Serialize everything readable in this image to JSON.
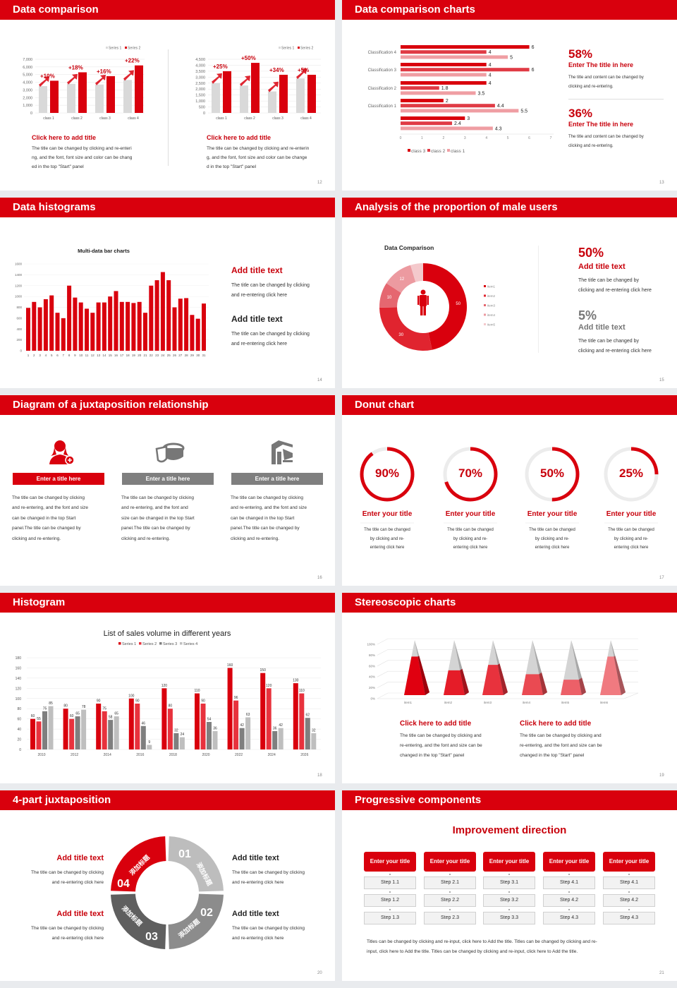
{
  "colors": {
    "brand": "#d9000d",
    "dark_red": "#c8000b",
    "grey": "#8c8c8c",
    "background": "#e9ebee"
  },
  "slides": {
    "s12": {
      "title": "Data comparison",
      "page": "12",
      "blocks": [
        {
          "heading": "Click here to add title",
          "lines": [
            "The title can be changed by clicking and re-enteri",
            "ng, and the font, font size and color can be chang",
            "ed in the top \"Start\" panel"
          ]
        },
        {
          "heading": "Click here to add title",
          "lines": [
            "The title can be changed by clicking and re-enterin",
            "g, and the font, font size and color can be change",
            "d in the top \"Start\" panel"
          ]
        }
      ]
    },
    "s13": {
      "title": "Data comparison charts",
      "page": "13",
      "stats": [
        {
          "value": "58%",
          "heading": "Enter The title in here",
          "lines": [
            "The title and content can be changed by",
            "clicking and re-entering."
          ]
        },
        {
          "value": "36%",
          "heading": "Enter The title in here",
          "lines": [
            "The title and content can be changed by",
            "clicking and re-entering."
          ]
        }
      ]
    },
    "s14": {
      "title": "Data histograms",
      "page": "14",
      "blocks": [
        {
          "heading": "Add title text",
          "lines": [
            "The title can be changed by clicking",
            "and re-entering click here"
          ]
        },
        {
          "heading": "Add title text",
          "lines": [
            "The title can be changed by clicking",
            "and re-entering click here"
          ]
        }
      ]
    },
    "s15": {
      "title": "Analysis of the proportion of male users",
      "page": "15",
      "stats": [
        {
          "value": "50%",
          "heading": "Add title text",
          "lines": [
            "The title can be changed by",
            "clicking and re-entering click here"
          ]
        },
        {
          "value": "5%",
          "heading": "Add title text",
          "lines": [
            "The title can be changed by",
            "clicking and re-entering click here"
          ]
        }
      ]
    },
    "s16": {
      "title": "Diagram of a juxtaposition relationship",
      "page": "16",
      "items": [
        {
          "icon": "female-user-add-icon",
          "label": "Enter a title here",
          "lines": [
            "The title can be changed by clicking",
            "and re-entering, and the font and size",
            "can be changed in the top Start",
            "panel.The title can be changed by",
            "clicking and re-entering."
          ]
        },
        {
          "icon": "pie-chart-3d-icon",
          "label": "Enter a title here",
          "lines": [
            "The title can be changed by clicking",
            "and re-entering, and the font and",
            "size can be changed in the top Start",
            "panel.The title can be changed by",
            "clicking and re-entering."
          ]
        },
        {
          "icon": "building-chart-icon",
          "label": "Enter a title here",
          "lines": [
            "The title can be changed by clicking",
            "and re-entering, and the font and size",
            "can be changed in the top Start",
            "panel.The title can be changed by",
            "clicking and re-entering."
          ]
        }
      ]
    },
    "s17": {
      "title": "Donut chart",
      "page": "17",
      "items": [
        {
          "percent": 90,
          "label": "90%",
          "heading": "Enter your title",
          "lines": [
            "The title can be changed",
            "by clicking and re-",
            "entering click here"
          ]
        },
        {
          "percent": 70,
          "label": "70%",
          "heading": "Enter your title",
          "lines": [
            "The title can be changed",
            "by clicking and re-",
            "entering click here"
          ]
        },
        {
          "percent": 50,
          "label": "50%",
          "heading": "Enter your title",
          "lines": [
            "The title can be changed",
            "by clicking and re-",
            "entering click here"
          ]
        },
        {
          "percent": 25,
          "label": "25%",
          "heading": "Enter your title",
          "lines": [
            "The title can be changed",
            "by clicking and re-",
            "entering click here"
          ]
        }
      ]
    },
    "s18": {
      "title": "Histogram",
      "page": "18"
    },
    "s19": {
      "title": "Stereoscopic charts",
      "page": "19",
      "blocks": [
        {
          "heading": "Click here to add title",
          "lines": [
            "The title can be changed by clicking and",
            "re-entering, and the font and size can be",
            "changed in the top \"Start\" panel"
          ]
        },
        {
          "heading": "Click here to add title",
          "lines": [
            "The title can be changed by clicking and",
            "re-entering, and the font and size can be",
            "changed in the top \"Start\" panel"
          ]
        }
      ]
    },
    "s20": {
      "title": "4-part juxtaposition",
      "page": "20",
      "segments": [
        {
          "num": "01",
          "label": "添加标题",
          "color": "#bdbdbd"
        },
        {
          "num": "02",
          "label": "添加标题",
          "color": "#8c8c8c"
        },
        {
          "num": "03",
          "label": "添加标题",
          "color": "#5f5f5f"
        },
        {
          "num": "04",
          "label": "添加标题",
          "color": "#d9000d"
        }
      ],
      "blocks": [
        {
          "heading": "Add title text",
          "lines": [
            "The title can be changed by clicking",
            "and re-entering click here"
          ]
        },
        {
          "heading": "Add title text",
          "lines": [
            "The title can be changed by clicking",
            "and re-entering click here"
          ]
        },
        {
          "heading": "Add title text",
          "lines": [
            "The title can be changed by clicking",
            "and re-entering click here"
          ]
        },
        {
          "heading": "Add title text",
          "lines": [
            "The title can be changed by clicking",
            "and re-entering click here"
          ]
        }
      ]
    },
    "s21": {
      "title": "Progressive components",
      "page": "21",
      "heading": "Improvement direction",
      "columns": [
        {
          "title": "Enter your title",
          "steps": [
            "Step 1.1",
            "Step 1.2",
            "Step 1.3"
          ]
        },
        {
          "title": "Enter your title",
          "steps": [
            "Step 2.1",
            "Step 2.2",
            "Step 2.3"
          ]
        },
        {
          "title": "Enter your title",
          "steps": [
            "Step 3.1",
            "Step 3.2",
            "Step 3.3"
          ]
        },
        {
          "title": "Enter your title",
          "steps": [
            "Step 4.1",
            "Step 4.2",
            "Step 4.3"
          ]
        },
        {
          "title": "Enter your title",
          "steps": [
            "Step 4.1",
            "Step 4.2",
            "Step 4.3"
          ]
        }
      ],
      "footer_lines": [
        "Titles can be changed by clicking and re-input, click here to Add the title. Titles can be changed by clicking and re-",
        "input, click here to Add the title. Titles can be changed by clicking and re-input, click here to Add the title."
      ]
    }
  },
  "chart_data": [
    {
      "type": "bar",
      "categories": [
        "class 1",
        "class 2",
        "class 3",
        "class 4"
      ],
      "series": [
        {
          "name": "Series 1",
          "values": [
            3500,
            3800,
            3700,
            4300
          ],
          "color": "#d9d9d9"
        },
        {
          "name": "Series 2",
          "values": [
            4200,
            5300,
            4800,
            6200
          ],
          "color": "#d9000d"
        }
      ],
      "annotations": [
        "+10%",
        "+18%",
        "+16%",
        "+22%"
      ],
      "ylim": [
        0,
        7000
      ],
      "yticks": [
        "0",
        "1,000",
        "2,000",
        "3,000",
        "4,000",
        "5,000",
        "6,000",
        "7,000"
      ],
      "legend": "top-right",
      "grid": true
    },
    {
      "type": "bar",
      "categories": [
        "class 1",
        "class 2",
        "class 3",
        "class 4"
      ],
      "series": [
        {
          "name": "Series 1",
          "values": [
            2500,
            2300,
            1800,
            2900
          ],
          "color": "#d9d9d9"
        },
        {
          "name": "Series 2",
          "values": [
            3500,
            4200,
            3200,
            3200
          ],
          "color": "#d9000d"
        }
      ],
      "annotations": [
        "+25%",
        "+50%",
        "+34%",
        "+5%"
      ],
      "ylim": [
        0,
        4500
      ],
      "yticks": [
        "0",
        "500",
        "1,000",
        "1,500",
        "2,000",
        "2,500",
        "3,000",
        "3,500",
        "4,000",
        "4,500"
      ],
      "legend": "top-right",
      "grid": true
    },
    {
      "type": "bar",
      "orientation": "horizontal",
      "categories": [
        "Classification 4",
        "Classification 3",
        "Classification 2",
        "Classification 1",
        ""
      ],
      "series": [
        {
          "name": "class 3",
          "values": [
            6,
            4,
            4,
            2,
            3
          ],
          "color": "#d9000d"
        },
        {
          "name": "class 2",
          "values": [
            4,
            6,
            1.8,
            4.4,
            2.4
          ],
          "color": "#e03b45"
        },
        {
          "name": "class 1",
          "values": [
            5,
            4,
            3.5,
            5.5,
            4.3
          ],
          "color": "#ef9ea3"
        }
      ],
      "xlim": [
        0,
        7
      ],
      "xticks": [
        "0",
        "1",
        "2",
        "3",
        "4",
        "5",
        "6",
        "7"
      ],
      "legend": "bottom",
      "grid": false
    },
    {
      "type": "bar",
      "title": "Multi-data bar charts",
      "categories": [
        "1",
        "2",
        "3",
        "4",
        "5",
        "6",
        "7",
        "8",
        "9",
        "10",
        "11",
        "12",
        "13",
        "14",
        "15",
        "16",
        "17",
        "18",
        "19",
        "20",
        "21",
        "22",
        "23",
        "24",
        "25",
        "26",
        "27",
        "28",
        "29",
        "30",
        "31"
      ],
      "values": [
        790,
        900,
        800,
        950,
        1020,
        700,
        600,
        1200,
        980,
        890,
        775,
        700,
        890,
        890,
        1000,
        1100,
        900,
        900,
        880,
        900,
        700,
        1200,
        1300,
        1450,
        1300,
        800,
        960,
        970,
        660,
        590,
        870
      ],
      "ylim": [
        0,
        1600
      ],
      "yticks": [
        "0",
        "200",
        "400",
        "600",
        "800",
        "1000",
        "1200",
        "1400",
        "1600"
      ],
      "color": "#d9000d",
      "grid": true
    },
    {
      "type": "pie",
      "subtype": "donut",
      "title": "Data Comparison",
      "categories": [
        "item1",
        "item2",
        "item3",
        "item4",
        "item5"
      ],
      "values": [
        50,
        30,
        10,
        12,
        5
      ],
      "data_labels": [
        "50",
        "30",
        "10",
        "12",
        ""
      ],
      "colors": [
        "#d9000d",
        "#e0242f",
        "#e56770",
        "#ec9aa0",
        "#f4c9cc"
      ],
      "legend": "right"
    },
    {
      "type": "bar",
      "title": "List of sales volume in different years",
      "categories": [
        "2010",
        "2012",
        "2014",
        "2016",
        "2018",
        "2020",
        "2022",
        "2024",
        "2026"
      ],
      "series": [
        {
          "name": "Series 1",
          "values": [
            60,
            80,
            90,
            100,
            120,
            110,
            160,
            150,
            130
          ],
          "color": "#d9000d"
        },
        {
          "name": "Series 2",
          "values": [
            55,
            60,
            75,
            90,
            80,
            90,
            96,
            120,
            110
          ],
          "color": "#e8323d"
        },
        {
          "name": "Series 3",
          "values": [
            75,
            65,
            58,
            46,
            32,
            54,
            42,
            36,
            62
          ],
          "color": "#7f7f7f"
        },
        {
          "name": "Series 4",
          "values": [
            85,
            78,
            65,
            9,
            24,
            36,
            63,
            42,
            32
          ],
          "color": "#bfbfbf"
        }
      ],
      "ylim": [
        0,
        180
      ],
      "yticks": [
        "0",
        "20",
        "40",
        "60",
        "80",
        "100",
        "120",
        "140",
        "160",
        "180"
      ],
      "legend": "top",
      "grid": true
    },
    {
      "type": "bar",
      "subtype": "3d-pyramid",
      "categories": [
        "item1",
        "item2",
        "item3",
        "item4",
        "item5",
        "item6"
      ],
      "values": [
        70,
        45,
        55,
        38,
        28,
        70
      ],
      "colors": [
        "#e00010",
        "#e51c28",
        "#e8323d",
        "#ea4a52",
        "#ec6068",
        "#f07a80"
      ],
      "ylim": [
        0,
        100
      ],
      "yticks": [
        "0%",
        "20%",
        "40%",
        "60%",
        "80%",
        "100%"
      ],
      "grid": true
    }
  ]
}
